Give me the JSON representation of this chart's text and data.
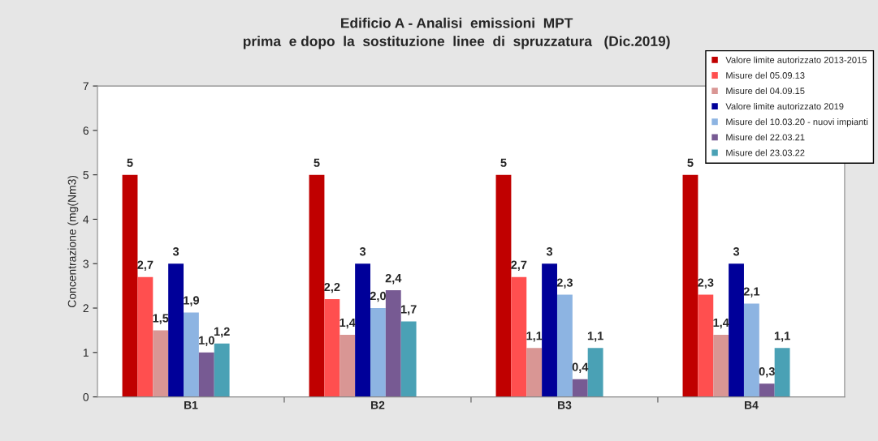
{
  "chart_data": {
    "type": "bar",
    "title": "Edificio A - Analisi  emissioni  MPT\nprima  e dopo  la  sostituzione  linee  di  spruzzatura   (Dic.2019)",
    "ylabel": "Concentrazione (mg(Nm3)",
    "categories": [
      "B1",
      "B2",
      "B3",
      "B4"
    ],
    "series": [
      {
        "name": "Valore limite autorizzato 2013-2015",
        "color": "#c00000",
        "values": [
          5,
          5,
          5,
          5
        ],
        "value_labels": [
          "5",
          "5",
          "5",
          "5"
        ]
      },
      {
        "name": "Misure del 05.09.13",
        "color": "#ff4f4f",
        "values": [
          2.7,
          2.2,
          2.7,
          2.3
        ],
        "value_labels": [
          "2,7",
          "2,2",
          "2,7",
          "2,3"
        ]
      },
      {
        "name": "Misure del 04.09.15",
        "color": "#d99694",
        "values": [
          1.5,
          1.4,
          1.1,
          1.4
        ],
        "value_labels": [
          "1,5",
          "1,4",
          "1,1",
          "1,4"
        ]
      },
      {
        "name": "Valore limite autorizzato 2019",
        "color": "#000099",
        "values": [
          3,
          3,
          3,
          3
        ],
        "value_labels": [
          "3",
          "3",
          "3",
          "3"
        ]
      },
      {
        "name": "Misure del 10.03.20 - nuovi impianti",
        "color": "#8db4e2",
        "values": [
          1.9,
          2.0,
          2.3,
          2.1
        ],
        "value_labels": [
          "1,9",
          "2,0",
          "2,3",
          "2,1"
        ]
      },
      {
        "name": "Misure del 22.03.21",
        "color": "#775a93",
        "values": [
          1.0,
          2.4,
          0.4,
          0.3
        ],
        "value_labels": [
          "1,0",
          "2,4",
          "0,4",
          "0,3"
        ]
      },
      {
        "name": "Misure del 23.03.22",
        "color": "#4aa1b5",
        "values": [
          1.2,
          1.7,
          1.1,
          1.1
        ],
        "value_labels": [
          "1,2",
          "1,7",
          "1,1",
          "1,1"
        ]
      }
    ],
    "ylim": [
      0,
      7
    ],
    "yticks": [
      0,
      1,
      2,
      3,
      4,
      5,
      6,
      7
    ],
    "grid": false,
    "legend": "top right"
  }
}
